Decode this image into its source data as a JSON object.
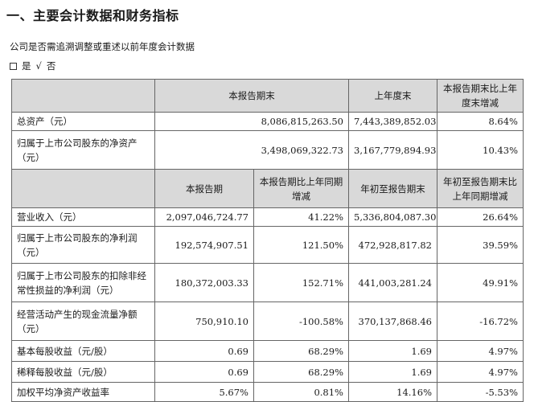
{
  "heading": "一、主要会计数据和财务指标",
  "question": "公司是否需追溯调整或重述以前年度会计数据",
  "answer": {
    "yes_label": "是",
    "check_mark": "√",
    "no_label": "否"
  },
  "header1": {
    "col1": "本报告期末",
    "col2": "上年度末",
    "col3": "本报告期末比上年度末增减"
  },
  "section1_rows": [
    {
      "label": "总资产（元）",
      "v1": "8,086,815,263.50",
      "v2": "7,443,389,852.03",
      "v3": "8.64%"
    },
    {
      "label": "归属于上市公司股东的净资产（元）",
      "v1": "3,498,069,322.73",
      "v2": "3,167,779,894.93",
      "v3": "10.43%"
    }
  ],
  "header2": {
    "col1": "本报告期",
    "col2": "本报告期比上年同期增减",
    "col3": "年初至报告期末",
    "col4": "年初至报告期末比上年同期增减"
  },
  "section2_rows": [
    {
      "label": "营业收入（元）",
      "v1": "2,097,046,724.77",
      "v2": "41.22%",
      "v3": "5,336,804,087.30",
      "v4": "26.64%"
    },
    {
      "label": "归属于上市公司股东的净利润（元）",
      "v1": "192,574,907.51",
      "v2": "121.50%",
      "v3": "472,928,817.82",
      "v4": "39.59%"
    },
    {
      "label": "归属于上市公司股东的扣除非经常性损益的净利润（元）",
      "v1": "180,372,003.33",
      "v2": "152.71%",
      "v3": "441,003,281.24",
      "v4": "49.91%"
    },
    {
      "label": "经营活动产生的现金流量净额（元）",
      "v1": "750,910.10",
      "v2": "-100.58%",
      "v3": "370,137,868.46",
      "v4": "-16.72%"
    },
    {
      "label": "基本每股收益（元/股）",
      "v1": "0.69",
      "v2": "68.29%",
      "v3": "1.69",
      "v4": "4.97%"
    },
    {
      "label": "稀释每股收益（元/股）",
      "v1": "0.69",
      "v2": "68.29%",
      "v3": "1.69",
      "v4": "4.97%"
    },
    {
      "label": "加权平均净资产收益率",
      "v1": "5.67%",
      "v2": "0.81%",
      "v3": "14.16%",
      "v4": "-5.53%"
    }
  ]
}
